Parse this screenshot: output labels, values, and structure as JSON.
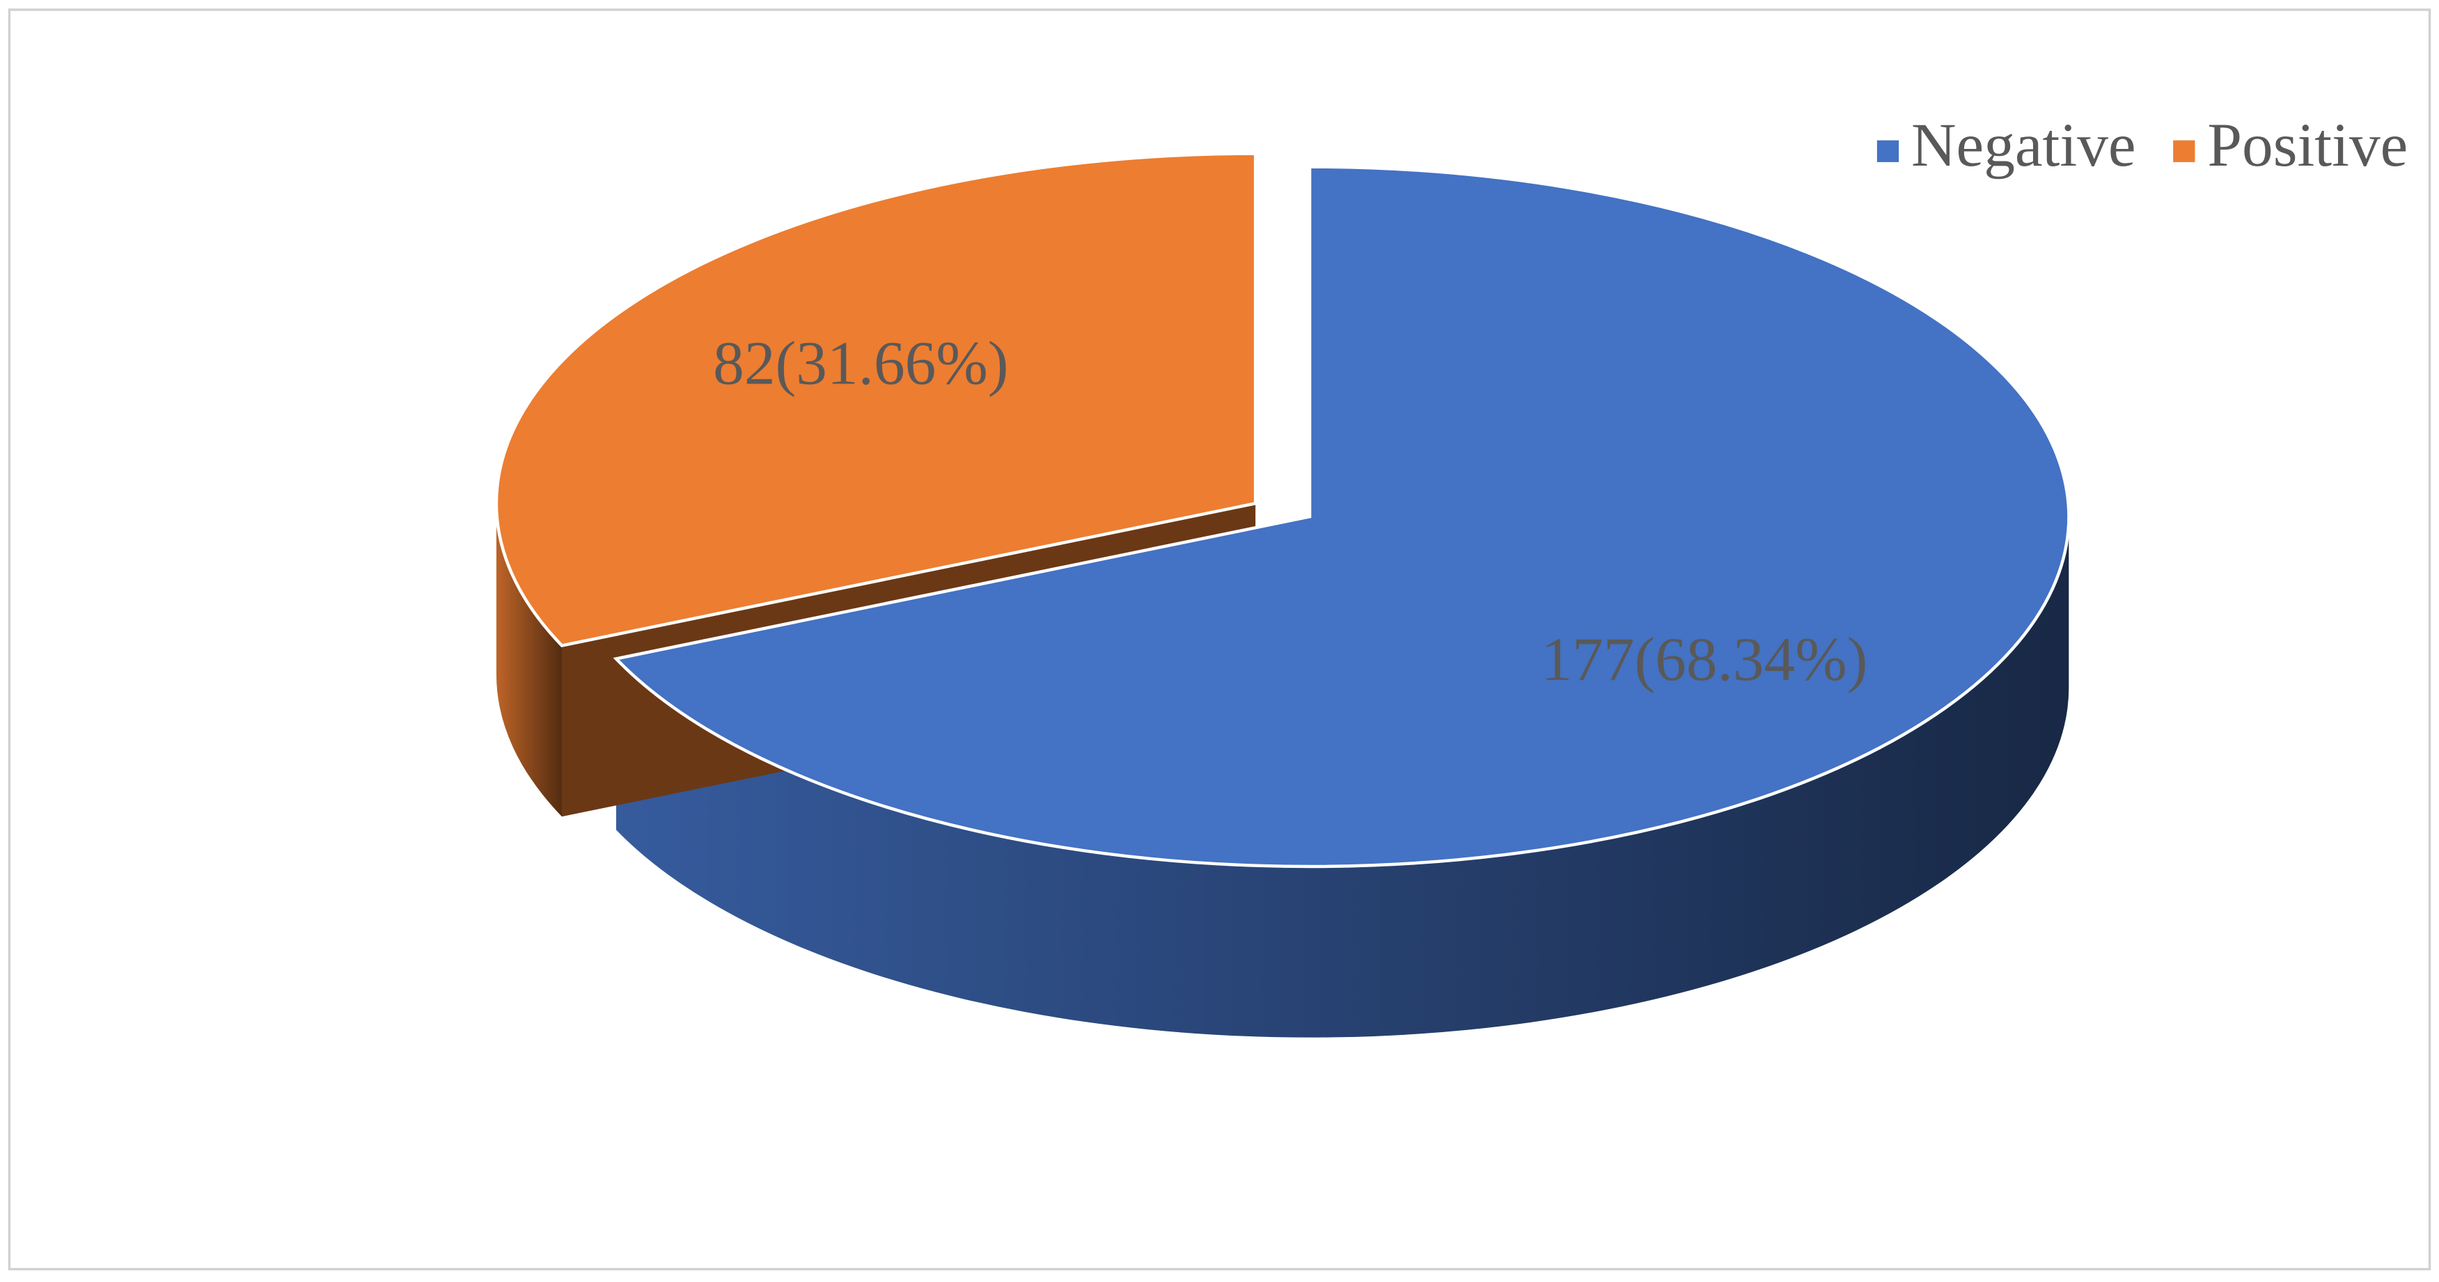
{
  "chart_data": {
    "type": "pie",
    "categories": [
      "Negative",
      "Positive"
    ],
    "values": [
      177,
      82
    ],
    "value_labels": [
      "177(68.34%)",
      "82(31.66%)"
    ],
    "colors": [
      "#4472c4",
      "#ed7d31"
    ],
    "explode": [
      0,
      1
    ],
    "legend": "top-right"
  }
}
